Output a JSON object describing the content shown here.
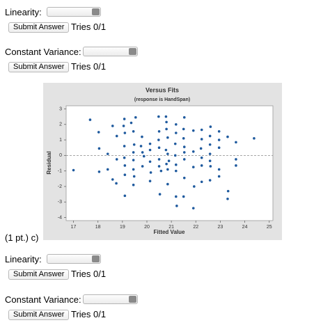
{
  "questions_top": [
    {
      "label": "Linearity:",
      "button": "Submit Answer",
      "tries": "Tries 0/1"
    },
    {
      "label": "Constant Variance:",
      "button": "Submit Answer",
      "tries": "Tries 0/1"
    }
  ],
  "part_label": "(1 pt.) c)",
  "questions_bottom": [
    {
      "label": "Linearity:",
      "button": "Submit Answer",
      "tries": "Tries 0/1"
    },
    {
      "label": "Constant Variance:",
      "button": "Submit Answer",
      "tries": "Tries 0/1"
    }
  ],
  "chart_data": {
    "type": "scatter",
    "title": "Versus Fits",
    "subtitle": "(response is HandSpan)",
    "x_label": "Fitted Value",
    "y_label": "Residual",
    "color": "#1f5a9e",
    "reference_line": 0,
    "xlim": [
      16.7,
      25.15
    ],
    "ylim": [
      -4.2,
      3.2
    ],
    "xticks": [
      17,
      18,
      19,
      20,
      21,
      22,
      23,
      24,
      25
    ],
    "yticks": [
      -4,
      -3,
      -2,
      -1,
      0,
      1,
      2,
      3
    ],
    "x": [
      17.0,
      17.68,
      18.03,
      18.05,
      18.05,
      18.4,
      18.4,
      18.6,
      18.6,
      18.75,
      18.77,
      18.77,
      19.08,
      19.05,
      19.1,
      19.08,
      19.08,
      19.1,
      19.1,
      19.1,
      19.36,
      19.45,
      19.54,
      19.48,
      19.45,
      19.45,
      19.45,
      19.45,
      19.48,
      19.8,
      19.82,
      19.82,
      19.88,
      19.76,
      20.13,
      20.13,
      20.13,
      20.13,
      20.16,
      20.48,
      20.5,
      20.48,
      20.5,
      20.5,
      20.5,
      20.53,
      20.58,
      20.78,
      20.8,
      20.8,
      20.85,
      20.78,
      20.85,
      20.8,
      20.85,
      20.85,
      20.9,
      21.19,
      21.19,
      21.16,
      21.16,
      21.19,
      21.19,
      21.19,
      21.22,
      21.5,
      21.5,
      21.53,
      21.53,
      21.53,
      21.53,
      21.5,
      21.53,
      21.9,
      21.9,
      21.9,
      21.93,
      21.9,
      22.24,
      22.24,
      22.21,
      22.24,
      22.24,
      22.24,
      22.58,
      22.58,
      22.58,
      22.58,
      22.58,
      22.6,
      22.6,
      22.95,
      22.95,
      22.95,
      22.95,
      22.95,
      23.3,
      23.32,
      23.3,
      23.64,
      23.64,
      23.64,
      24.38
    ],
    "y": [
      -0.95,
      2.3,
      1.5,
      0.45,
      -1.05,
      0.1,
      -0.9,
      1.9,
      -1.55,
      -1.8,
      1.25,
      -0.25,
      2.35,
      1.9,
      1.45,
      0.6,
      -0.15,
      -0.65,
      -1.25,
      -2.6,
      2.1,
      1.55,
      2.45,
      0.7,
      0.2,
      -0.3,
      -0.9,
      -1.9,
      -1.35,
      1.2,
      0.2,
      -0.7,
      -0.05,
      0.6,
      0.75,
      0.35,
      -0.4,
      -1.65,
      -1.1,
      2.5,
      1.55,
      1.0,
      0.5,
      -0.25,
      -0.7,
      -2.5,
      -1.0,
      2.5,
      2.15,
      1.7,
      1.15,
      0.35,
      0.1,
      -0.55,
      -0.9,
      -1.85,
      -0.35,
      2.0,
      1.45,
      0.75,
      0.0,
      -0.6,
      -1.0,
      -2.65,
      -3.25,
      1.7,
      1.1,
      2.45,
      0.55,
      -0.25,
      -1.45,
      -2.65,
      0.2,
      0.25,
      1.6,
      -0.75,
      -2.0,
      -3.4,
      1.65,
      1.05,
      0.45,
      -0.15,
      -0.65,
      -1.7,
      1.25,
      0.7,
      0.1,
      -0.35,
      -1.6,
      1.85,
      -0.7,
      1.55,
      1.0,
      0.5,
      -0.9,
      -1.35,
      1.2,
      -2.3,
      -2.8,
      0.85,
      -0.25,
      -0.65,
      1.1
    ]
  }
}
